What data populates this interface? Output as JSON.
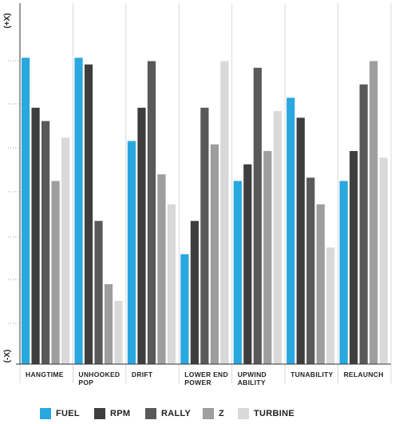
{
  "chart_data": {
    "type": "bar",
    "y_top_label": "(+X)",
    "y_bottom_label": "(-X)",
    "ylim": [
      0,
      100
    ],
    "grid": true,
    "legend_position": "bottom",
    "categories": [
      [
        "HANGTIME"
      ],
      [
        "UNHOOKED",
        "POP"
      ],
      [
        "DRIFT"
      ],
      [
        "LOWER END",
        "POWER"
      ],
      [
        "UPWIND",
        "ABILITY"
      ],
      [
        "TUNABILITY"
      ],
      [
        "RELAUNCH"
      ]
    ],
    "series": [
      {
        "name": "FUEL",
        "color": "#29a7df",
        "values": [
          92,
          92,
          67,
          33,
          55,
          80,
          55
        ]
      },
      {
        "name": "RPM",
        "color": "#3e3e3e",
        "values": [
          77,
          90,
          77,
          43,
          60,
          74,
          64
        ]
      },
      {
        "name": "RALLY",
        "color": "#595959",
        "values": [
          73,
          43,
          91,
          77,
          89,
          56,
          84
        ]
      },
      {
        "name": "Z",
        "color": "#9e9e9e",
        "values": [
          55,
          24,
          57,
          66,
          64,
          48,
          91
        ]
      },
      {
        "name": "TURBINE",
        "color": "#d9d9d9",
        "values": [
          68,
          19,
          48,
          91,
          76,
          35,
          62
        ]
      }
    ]
  }
}
